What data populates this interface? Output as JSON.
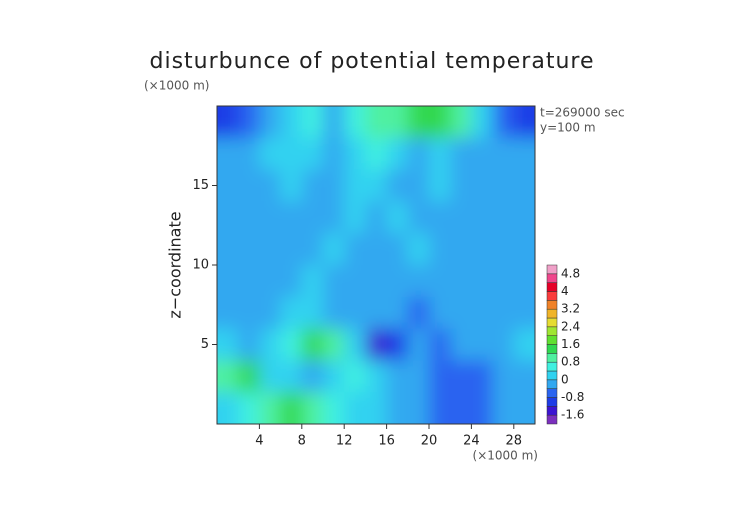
{
  "chart_data": {
    "type": "heatmap",
    "title": "disturbunce of potential temperature",
    "x_label": "(×1000 m)",
    "y_unit_label": "(×1000 m)",
    "y_label": "z−coordinate",
    "annotations": [
      "t=269000 sec",
      "y=100 m"
    ],
    "xlim": [
      0,
      30
    ],
    "ylim": [
      0,
      20
    ],
    "xticks": [
      4,
      8,
      12,
      16,
      20,
      24,
      28
    ],
    "yticks": [
      5,
      10,
      15
    ],
    "x": [
      1,
      3,
      5,
      7,
      9,
      11,
      13,
      15,
      17,
      19,
      21,
      23,
      25,
      27,
      29
    ],
    "y": [
      19,
      17,
      15,
      13,
      11,
      9,
      7,
      5,
      3,
      1
    ],
    "z": [
      [
        -1.2,
        -0.8,
        -0.4,
        0,
        0.4,
        -0.2,
        0.4,
        1.0,
        1.0,
        1.2,
        1.2,
        0.8,
        0.2,
        -0.6,
        -1.2
      ],
      [
        -0.4,
        -0.2,
        0,
        0.2,
        0,
        -0.2,
        0,
        0.4,
        0,
        -0.2,
        0,
        -0.2,
        -0.2,
        -0.4,
        -0.4
      ],
      [
        -0.2,
        -0.2,
        -0.4,
        0,
        -0.2,
        -0.4,
        0.2,
        0,
        -0.2,
        -0.4,
        0,
        -0.2,
        -0.4,
        -0.2,
        -0.2
      ],
      [
        -0.2,
        -0.4,
        -0.2,
        -0.2,
        -0.4,
        -0.2,
        0.2,
        -0.2,
        0,
        -0.4,
        -0.2,
        -0.2,
        -0.4,
        -0.2,
        -0.2
      ],
      [
        -0.2,
        -0.2,
        -0.4,
        -0.2,
        -0.2,
        0.2,
        -0.2,
        -0.2,
        -0.2,
        0,
        -0.4,
        -0.2,
        -0.2,
        -0.4,
        -0.2
      ],
      [
        -0.2,
        -0.4,
        -0.2,
        -0.4,
        0.2,
        -0.2,
        -0.4,
        -0.2,
        -0.2,
        -0.2,
        -0.4,
        -0.2,
        -0.2,
        -0.2,
        -0.4
      ],
      [
        -0.2,
        -0.2,
        -0.4,
        0,
        0,
        -0.2,
        -0.4,
        -0.4,
        -0.2,
        -0.6,
        -0.4,
        -0.2,
        -0.2,
        -0.4,
        -0.2
      ],
      [
        0,
        -0.2,
        0.2,
        0.4,
        1.2,
        0.8,
        0.2,
        -1.6,
        -1.0,
        -0.4,
        -0.6,
        -0.2,
        -0.2,
        -0.2,
        0
      ],
      [
        1.0,
        1.2,
        0.2,
        0,
        -0.4,
        0.2,
        0.6,
        0,
        -0.2,
        -0.4,
        -0.6,
        -0.8,
        -0.6,
        -0.4,
        -0.4
      ],
      [
        0,
        0.4,
        0.8,
        1.2,
        0.8,
        0.4,
        0.2,
        0,
        -0.4,
        -0.2,
        -0.6,
        -0.8,
        -0.6,
        -0.4,
        -0.2
      ]
    ],
    "colorbar": {
      "levels": [
        -1.6,
        -1.2,
        -0.8,
        -0.4,
        0,
        0.4,
        0.8,
        1.2,
        1.6,
        2.0,
        2.4,
        2.8,
        3.2,
        3.6,
        4,
        4.4,
        4.8
      ],
      "ticks": [
        -1.6,
        -0.8,
        0,
        0.8,
        1.6,
        2.4,
        3.2,
        4,
        4.8
      ],
      "colors": [
        "#7b2fbe",
        "#3c14d2",
        "#1e3ce6",
        "#2a64f0",
        "#32a8f0",
        "#30d2f0",
        "#40f0e0",
        "#50f0a0",
        "#30d850",
        "#60e030",
        "#a0e632",
        "#e6dc32",
        "#f0b428",
        "#f08228",
        "#fa3c3c",
        "#e60028",
        "#f0468c",
        "#f0a0c8"
      ]
    }
  }
}
